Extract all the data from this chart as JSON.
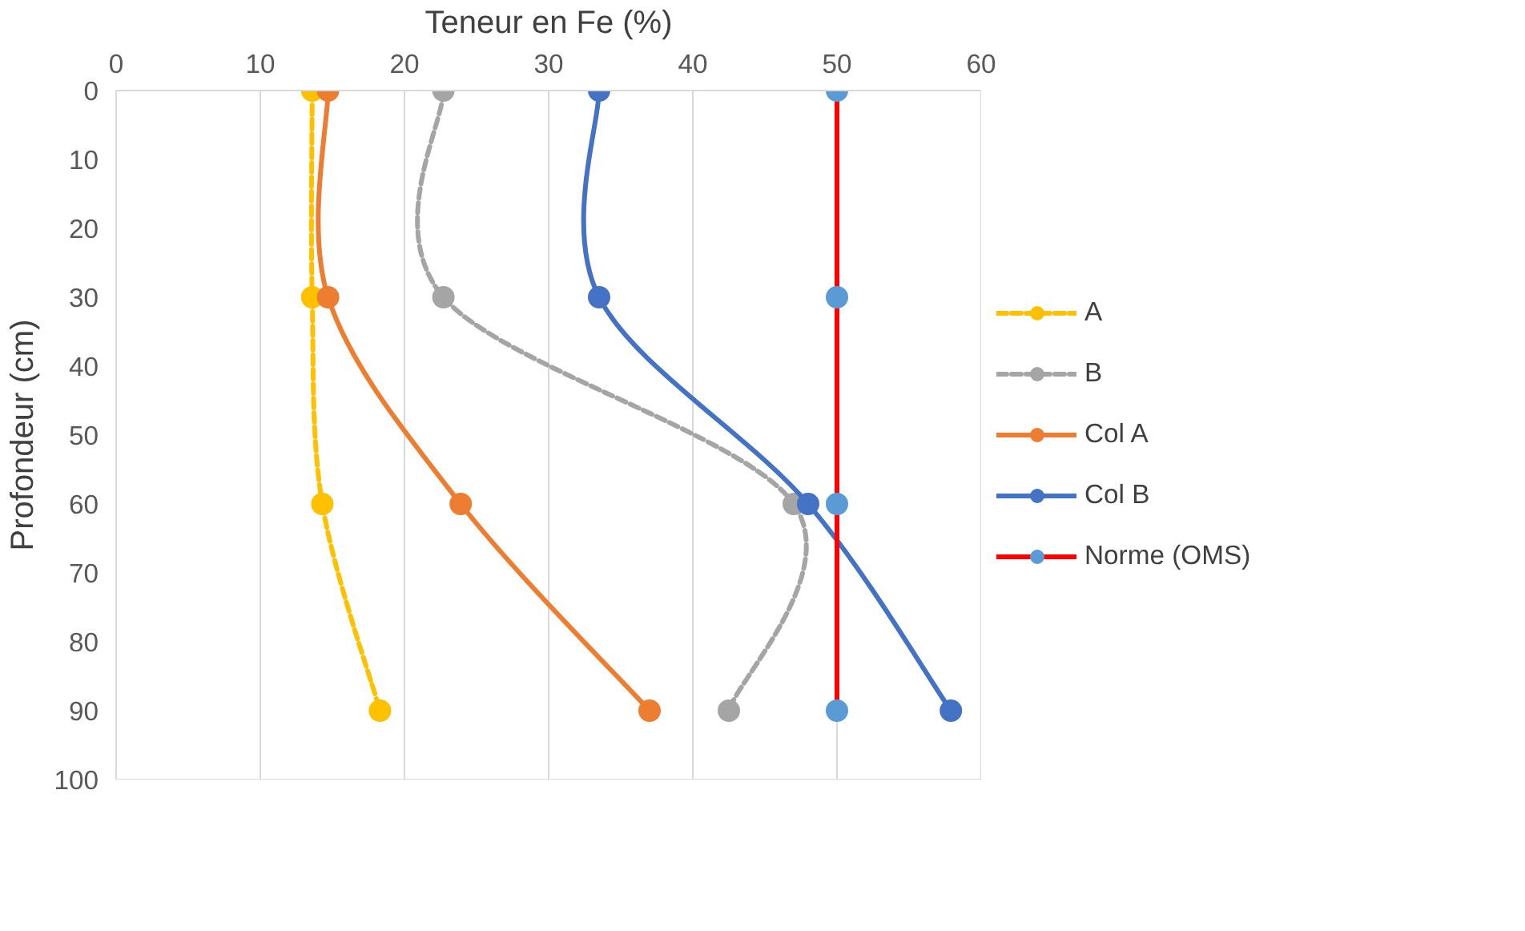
{
  "chart_data": {
    "type": "line",
    "xlabel": "Teneur en Fe (%)",
    "ylabel": "Profondeur (cm)",
    "orientation": "horizontal",
    "x": [
      0,
      30,
      60,
      90
    ],
    "series": [
      {
        "name": "A",
        "color": "#ffc000",
        "values": [
          13.6,
          13.6,
          14.3,
          18.3
        ],
        "line_style": "dashed"
      },
      {
        "name": "B",
        "color": "#a5a5a5",
        "values": [
          22.7,
          22.7,
          47.0,
          42.5
        ],
        "line_style": "dashed"
      },
      {
        "name": "Col A",
        "color": "#ed7d31",
        "values": [
          14.7,
          14.7,
          23.9,
          37.0
        ],
        "line_style": "solid"
      },
      {
        "name": "Col B",
        "color": "#4472c4",
        "values": [
          33.5,
          33.5,
          48.0,
          57.9
        ],
        "line_style": "solid"
      },
      {
        "name": "Norme (OMS)",
        "color": "#ff0000",
        "colors": [
          "#5b9bd5",
          "#5b9bd5",
          "#5b9bd5",
          "#5b9bd5"
        ],
        "values": [
          50,
          50,
          50,
          50
        ],
        "line_style": "solid"
      }
    ],
    "xlim": [
      0,
      60
    ],
    "xticks": [
      0,
      10,
      20,
      30,
      40,
      50,
      60
    ],
    "ylim": [
      100,
      0
    ],
    "yticks": [
      0,
      10,
      20,
      30,
      40,
      50,
      60,
      70,
      80,
      90,
      100
    ],
    "grid": "x",
    "legend": "right",
    "marker": "circle"
  }
}
